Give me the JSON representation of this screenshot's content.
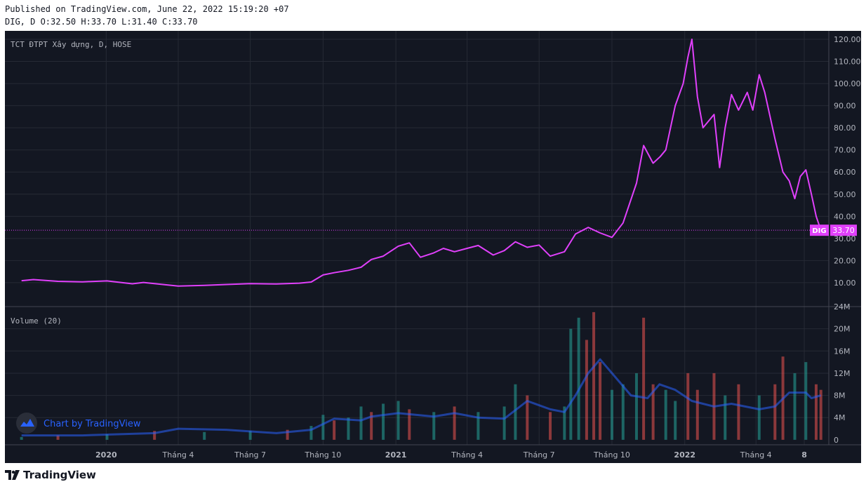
{
  "header": {
    "published": "Published on TradingView.com, June 22, 2022 15:19:20 +07",
    "ohlc": "DIG, D O:32.50 H:33.70 L:31.40 C:33.70"
  },
  "branding": {
    "watermark": "Chart by TradingView",
    "footer_logo": "TradingView"
  },
  "colors": {
    "background": "#131722",
    "price_line": "#e040fb",
    "volume_up": "#26a69a",
    "volume_down": "#ef5350",
    "volume_ma": "#2962ff"
  },
  "chart_data": [
    {
      "type": "line",
      "title": "TCT ĐTPT Xây dựng, D, HOSE",
      "series": [
        {
          "name": "DIG",
          "points": [
            [
              "2019-09-16",
              10.9
            ],
            [
              "2019-10-01",
              11.4
            ],
            [
              "2019-11-01",
              10.6
            ],
            [
              "2019-12-02",
              10.4
            ],
            [
              "2020-01-02",
              10.8
            ],
            [
              "2020-02-03",
              9.5
            ],
            [
              "2020-02-17",
              10.1
            ],
            [
              "2020-03-02",
              9.6
            ],
            [
              "2020-04-01",
              8.5
            ],
            [
              "2020-05-04",
              8.8
            ],
            [
              "2020-06-01",
              9.2
            ],
            [
              "2020-07-01",
              9.6
            ],
            [
              "2020-08-03",
              9.4
            ],
            [
              "2020-09-01",
              9.8
            ],
            [
              "2020-09-16",
              10.3
            ],
            [
              "2020-10-01",
              13.5
            ],
            [
              "2020-10-15",
              14.5
            ],
            [
              "2020-11-02",
              15.6
            ],
            [
              "2020-11-18",
              17.0
            ],
            [
              "2020-12-01",
              20.5
            ],
            [
              "2020-12-16",
              22.0
            ],
            [
              "2021-01-04",
              26.5
            ],
            [
              "2021-01-18",
              28.0
            ],
            [
              "2021-02-01",
              21.5
            ],
            [
              "2021-02-18",
              23.5
            ],
            [
              "2021-03-02",
              25.5
            ],
            [
              "2021-03-16",
              24.0
            ],
            [
              "2021-04-01",
              25.5
            ],
            [
              "2021-04-15",
              26.8
            ],
            [
              "2021-05-04",
              22.5
            ],
            [
              "2021-05-18",
              24.5
            ],
            [
              "2021-06-01",
              28.5
            ],
            [
              "2021-06-16",
              26.0
            ],
            [
              "2021-07-01",
              27.0
            ],
            [
              "2021-07-15",
              22.0
            ],
            [
              "2021-08-02",
              24.0
            ],
            [
              "2021-08-16",
              32.0
            ],
            [
              "2021-09-01",
              35.0
            ],
            [
              "2021-09-16",
              32.5
            ],
            [
              "2021-10-01",
              30.5
            ],
            [
              "2021-10-15",
              37.0
            ],
            [
              "2021-11-01",
              55.0
            ],
            [
              "2021-11-10",
              72.0
            ],
            [
              "2021-11-22",
              64.0
            ],
            [
              "2021-12-01",
              67.0
            ],
            [
              "2021-12-08",
              70.0
            ],
            [
              "2021-12-20",
              90.0
            ],
            [
              "2021-12-30",
              100.0
            ],
            [
              "2022-01-05",
              112.0
            ],
            [
              "2022-01-10",
              120.0
            ],
            [
              "2022-01-17",
              94.0
            ],
            [
              "2022-01-24",
              80.0
            ],
            [
              "2022-02-07",
              86.0
            ],
            [
              "2022-02-14",
              62.0
            ],
            [
              "2022-02-21",
              80.0
            ],
            [
              "2022-03-01",
              95.0
            ],
            [
              "2022-03-10",
              88.0
            ],
            [
              "2022-03-21",
              96.0
            ],
            [
              "2022-03-28",
              88.0
            ],
            [
              "2022-04-05",
              104.0
            ],
            [
              "2022-04-12",
              96.0
            ],
            [
              "2022-04-25",
              75.0
            ],
            [
              "2022-05-05",
              60.0
            ],
            [
              "2022-05-13",
              56.0
            ],
            [
              "2022-05-20",
              48.0
            ],
            [
              "2022-05-27",
              58.0
            ],
            [
              "2022-06-03",
              61.0
            ],
            [
              "2022-06-10",
              50.0
            ],
            [
              "2022-06-16",
              40.0
            ],
            [
              "2022-06-22",
              33.7
            ]
          ]
        }
      ],
      "x_ticks": [
        {
          "date": "2020-01-01",
          "label": "2020",
          "bold": true
        },
        {
          "date": "2020-04-01",
          "label": "Tháng 4"
        },
        {
          "date": "2020-07-01",
          "label": "Tháng 7"
        },
        {
          "date": "2020-10-01",
          "label": "Tháng 10"
        },
        {
          "date": "2021-01-01",
          "label": "2021",
          "bold": true
        },
        {
          "date": "2021-04-01",
          "label": "Tháng 4"
        },
        {
          "date": "2021-07-01",
          "label": "Tháng 7"
        },
        {
          "date": "2021-10-01",
          "label": "Tháng 10"
        },
        {
          "date": "2022-01-01",
          "label": "2022",
          "bold": true
        },
        {
          "date": "2022-04-01",
          "label": "Tháng 4"
        },
        {
          "date": "2022-06-01",
          "label": "8",
          "bold": true
        }
      ],
      "xlim": [
        "2019-08-26",
        "2022-07-02"
      ],
      "y_ticks": [
        "10.00",
        "20.00",
        "30.00",
        "40.00",
        "50.00",
        "60.00",
        "70.00",
        "80.00",
        "90.00",
        "100.00",
        "110.00",
        "120.00"
      ],
      "ylim": [
        -0.8,
        123.8
      ],
      "last_price": {
        "label": "DIG",
        "value": 33.7,
        "text": "33.70"
      },
      "grid": true
    },
    {
      "type": "bar",
      "title": "Volume (20)",
      "bars": [
        [
          "2019-09-16",
          0.5,
          "up"
        ],
        [
          "2019-11-01",
          0.8,
          "down"
        ],
        [
          "2020-01-02",
          1.0,
          "up"
        ],
        [
          "2020-03-02",
          1.6,
          "down"
        ],
        [
          "2020-05-04",
          1.4,
          "up"
        ],
        [
          "2020-07-01",
          1.6,
          "up"
        ],
        [
          "2020-08-17",
          1.8,
          "down"
        ],
        [
          "2020-09-16",
          2.5,
          "up"
        ],
        [
          "2020-10-01",
          4.5,
          "up"
        ],
        [
          "2020-10-15",
          3.5,
          "down"
        ],
        [
          "2020-11-02",
          4.0,
          "up"
        ],
        [
          "2020-11-18",
          6.0,
          "up"
        ],
        [
          "2020-12-01",
          5.0,
          "down"
        ],
        [
          "2020-12-16",
          6.5,
          "up"
        ],
        [
          "2021-01-04",
          7.0,
          "up"
        ],
        [
          "2021-01-18",
          5.5,
          "down"
        ],
        [
          "2021-02-18",
          5.0,
          "up"
        ],
        [
          "2021-03-16",
          6.0,
          "down"
        ],
        [
          "2021-04-15",
          5.0,
          "up"
        ],
        [
          "2021-05-18",
          6.0,
          "up"
        ],
        [
          "2021-06-01",
          10.0,
          "up"
        ],
        [
          "2021-06-16",
          8.0,
          "down"
        ],
        [
          "2021-07-15",
          5.0,
          "down"
        ],
        [
          "2021-08-02",
          6.0,
          "up"
        ],
        [
          "2021-08-10",
          20.0,
          "up"
        ],
        [
          "2021-08-20",
          22.0,
          "up"
        ],
        [
          "2021-08-30",
          18.0,
          "down"
        ],
        [
          "2021-09-08",
          23.0,
          "down"
        ],
        [
          "2021-09-16",
          14.0,
          "down"
        ],
        [
          "2021-10-01",
          9.0,
          "up"
        ],
        [
          "2021-10-15",
          10.0,
          "up"
        ],
        [
          "2021-11-01",
          12.0,
          "up"
        ],
        [
          "2021-11-10",
          22.0,
          "down"
        ],
        [
          "2021-11-22",
          10.0,
          "down"
        ],
        [
          "2021-12-08",
          9.0,
          "up"
        ],
        [
          "2021-12-20",
          7.0,
          "up"
        ],
        [
          "2022-01-05",
          12.0,
          "down"
        ],
        [
          "2022-01-17",
          9.0,
          "down"
        ],
        [
          "2022-02-07",
          12.0,
          "down"
        ],
        [
          "2022-02-21",
          8.0,
          "up"
        ],
        [
          "2022-03-10",
          10.0,
          "down"
        ],
        [
          "2022-04-05",
          8.0,
          "up"
        ],
        [
          "2022-04-25",
          10.0,
          "down"
        ],
        [
          "2022-05-05",
          15.0,
          "down"
        ],
        [
          "2022-05-20",
          12.0,
          "up"
        ],
        [
          "2022-06-03",
          14.0,
          "up"
        ],
        [
          "2022-06-16",
          10.0,
          "down"
        ],
        [
          "2022-06-22",
          9.0,
          "down"
        ]
      ],
      "ma": [
        [
          "2019-09-16",
          0.8
        ],
        [
          "2019-12-02",
          0.8
        ],
        [
          "2020-03-02",
          1.2
        ],
        [
          "2020-04-01",
          2.0
        ],
        [
          "2020-06-01",
          1.8
        ],
        [
          "2020-08-03",
          1.2
        ],
        [
          "2020-09-16",
          1.8
        ],
        [
          "2020-10-15",
          3.8
        ],
        [
          "2020-11-18",
          3.5
        ],
        [
          "2020-12-01",
          4.2
        ],
        [
          "2021-01-04",
          4.8
        ],
        [
          "2021-02-18",
          4.2
        ],
        [
          "2021-03-16",
          4.8
        ],
        [
          "2021-04-15",
          4.0
        ],
        [
          "2021-05-18",
          3.8
        ],
        [
          "2021-06-16",
          7.0
        ],
        [
          "2021-07-15",
          5.5
        ],
        [
          "2021-08-02",
          5.0
        ],
        [
          "2021-08-16",
          8.0
        ],
        [
          "2021-09-01",
          12.0
        ],
        [
          "2021-09-16",
          14.5
        ],
        [
          "2021-10-01",
          12.0
        ],
        [
          "2021-10-25",
          8.0
        ],
        [
          "2021-11-15",
          7.5
        ],
        [
          "2021-11-30",
          10.0
        ],
        [
          "2021-12-20",
          9.0
        ],
        [
          "2022-01-10",
          7.0
        ],
        [
          "2022-02-07",
          6.0
        ],
        [
          "2022-03-01",
          6.5
        ],
        [
          "2022-04-05",
          5.5
        ],
        [
          "2022-04-25",
          6.0
        ],
        [
          "2022-05-13",
          8.5
        ],
        [
          "2022-06-03",
          8.5
        ],
        [
          "2022-06-10",
          7.5
        ],
        [
          "2022-06-22",
          8.0
        ]
      ],
      "y_ticks": [
        {
          "value": 0,
          "label": "0"
        },
        {
          "value": 4,
          "label": "4M"
        },
        {
          "value": 8,
          "label": "8M"
        },
        {
          "value": 12,
          "label": "12M"
        },
        {
          "value": 16,
          "label": "16M"
        },
        {
          "value": 20,
          "label": "20M"
        },
        {
          "value": 24,
          "label": "24M"
        }
      ],
      "ylim": [
        -0.9,
        24
      ],
      "grid": true
    }
  ]
}
